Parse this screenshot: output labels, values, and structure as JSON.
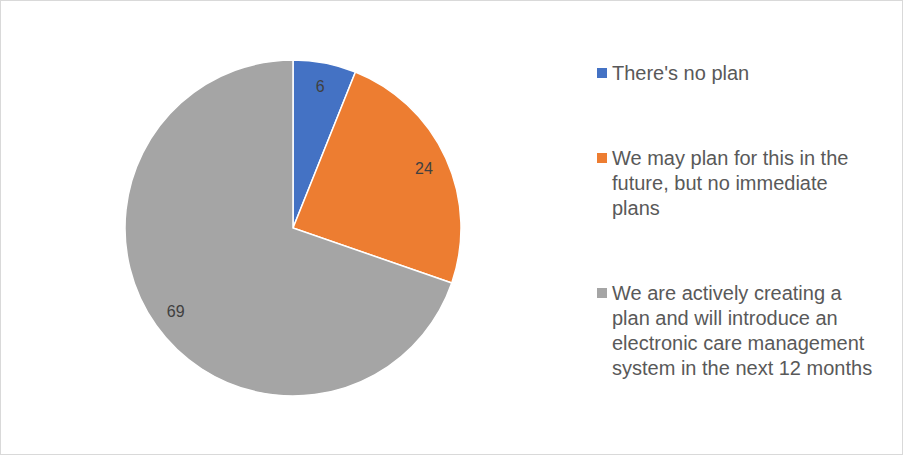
{
  "chart_data": {
    "type": "pie",
    "categories": [
      "There's no plan",
      "We may plan for this in the future, but no immediate plans",
      "We are actively creating a plan and will introduce an electronic care management system in the next 12 months"
    ],
    "values": [
      6,
      24,
      69
    ],
    "colors": [
      "#4472c4",
      "#ed7d31",
      "#a5a5a5"
    ],
    "data_labels": true,
    "legend": "right"
  }
}
